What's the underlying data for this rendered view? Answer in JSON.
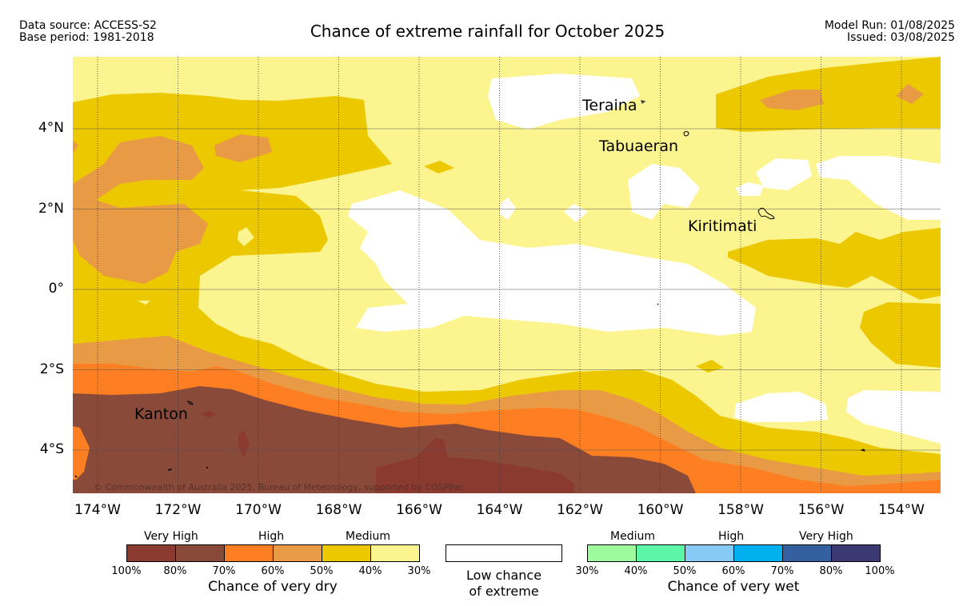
{
  "header": {
    "data_source": "Data source: ACCESS-S2",
    "base_period": "Base period: 1981-2018",
    "title": "Chance of extreme rainfall for October 2025",
    "model_run": "Model Run: 01/08/2025",
    "issued": "Issued: 03/08/2025"
  },
  "map": {
    "x_axis_labels": [
      "174°W",
      "172°W",
      "170°W",
      "168°W",
      "166°W",
      "164°W",
      "162°W",
      "160°W",
      "158°W",
      "156°W",
      "154°W"
    ],
    "y_axis_labels": [
      "4°N",
      "2°N",
      "0°",
      "2°S",
      "4°S"
    ],
    "places": [
      {
        "name": "Teraina"
      },
      {
        "name": "Tabuaeran"
      },
      {
        "name": "Kiritimati"
      },
      {
        "name": "Kanton"
      }
    ],
    "copyright": "© Commonwealth of Australia 2025, Bureau of Meteorology, supported by COSPPac",
    "colors": {
      "very_high_dark": "#8b3a2f",
      "very_high": "#8a4a3a",
      "high_dark": "#fe7e22",
      "high": "#e99a45",
      "medium_dark": "#ecc800",
      "medium": "#fcf58f",
      "low": "#ffffff"
    }
  },
  "legend": {
    "dry": {
      "band_labels": [
        "Very High",
        "High",
        "Medium"
      ],
      "colors": [
        "#8b3a2f",
        "#8a4a3a",
        "#fe7e22",
        "#e99a45",
        "#ecc800",
        "#fcf58f"
      ],
      "ticks": [
        "100%",
        "80%",
        "70%",
        "60%",
        "50%",
        "40%",
        "30%"
      ],
      "caption": "Chance of very dry"
    },
    "low": {
      "caption_line1": "Low chance",
      "caption_line2": "of extreme"
    },
    "wet": {
      "band_labels": [
        "Medium",
        "High",
        "Very High"
      ],
      "colors": [
        "#9dfb9d",
        "#5cf7a6",
        "#86cbf6",
        "#00b0ef",
        "#3560a0",
        "#3c3874"
      ],
      "ticks": [
        "30%",
        "40%",
        "50%",
        "60%",
        "70%",
        "80%",
        "100%"
      ],
      "caption": "Chance of very wet"
    }
  }
}
